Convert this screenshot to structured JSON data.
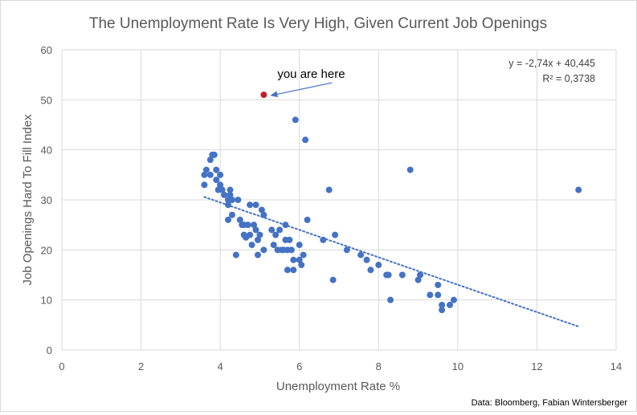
{
  "chart_data": {
    "type": "scatter",
    "title": "The Unemployment Rate Is Very High, Given Current Job Openings",
    "xlabel": "Unemployment Rate %",
    "ylabel": "Job Openings Hard To Fill Index",
    "xlim": [
      0,
      14
    ],
    "ylim": [
      0,
      60
    ],
    "xticks": [
      0,
      2,
      4,
      6,
      8,
      10,
      12,
      14
    ],
    "yticks": [
      0,
      10,
      20,
      30,
      40,
      50,
      60
    ],
    "grid": true,
    "source": "Data: Bloomberg, Fabian Wintersberger",
    "trendline": {
      "type": "linear",
      "style": "dotted",
      "slope": -2.74,
      "intercept": 40.445,
      "x_range": [
        3.6,
        13.05
      ],
      "equation_label": "y = -2,74x + 40,445",
      "r2_label": "R² = 0,3738"
    },
    "highlight": {
      "x": 5.1,
      "y": 51,
      "color": "#c0202a",
      "label": "you are here"
    },
    "series": [
      {
        "name": "Observations",
        "color": "#4472c4",
        "points": [
          [
            3.6,
            35
          ],
          [
            3.6,
            33
          ],
          [
            3.65,
            36
          ],
          [
            3.75,
            38
          ],
          [
            3.8,
            39
          ],
          [
            3.85,
            39
          ],
          [
            3.75,
            35
          ],
          [
            3.9,
            36
          ],
          [
            3.9,
            34
          ],
          [
            3.95,
            32
          ],
          [
            4.0,
            35
          ],
          [
            4.0,
            33
          ],
          [
            4.05,
            32
          ],
          [
            4.1,
            31
          ],
          [
            4.2,
            30
          ],
          [
            4.25,
            31
          ],
          [
            4.25,
            32
          ],
          [
            4.3,
            30
          ],
          [
            4.2,
            29
          ],
          [
            4.3,
            27
          ],
          [
            4.45,
            30
          ],
          [
            4.5,
            26
          ],
          [
            4.55,
            25
          ],
          [
            4.6,
            25
          ],
          [
            4.7,
            25
          ],
          [
            4.75,
            29
          ],
          [
            4.6,
            23
          ],
          [
            4.65,
            22.5
          ],
          [
            4.75,
            23
          ],
          [
            4.8,
            21
          ],
          [
            4.85,
            25
          ],
          [
            4.9,
            24
          ],
          [
            4.9,
            29
          ],
          [
            4.95,
            22
          ],
          [
            5.0,
            23
          ],
          [
            5.05,
            28
          ],
          [
            5.1,
            27
          ],
          [
            5.1,
            20
          ],
          [
            4.2,
            26
          ],
          [
            4.95,
            19
          ],
          [
            4.4,
            19
          ],
          [
            5.3,
            24
          ],
          [
            5.35,
            21
          ],
          [
            5.4,
            23
          ],
          [
            5.45,
            20
          ],
          [
            5.5,
            24
          ],
          [
            5.55,
            20
          ],
          [
            5.6,
            20
          ],
          [
            5.65,
            25
          ],
          [
            5.7,
            20
          ],
          [
            5.65,
            22
          ],
          [
            5.7,
            16
          ],
          [
            5.75,
            22
          ],
          [
            5.8,
            20
          ],
          [
            5.85,
            16
          ],
          [
            5.85,
            18
          ],
          [
            5.9,
            46
          ],
          [
            6.0,
            18
          ],
          [
            6.0,
            21
          ],
          [
            6.05,
            17
          ],
          [
            6.1,
            19
          ],
          [
            6.15,
            42
          ],
          [
            6.2,
            26
          ],
          [
            6.6,
            22
          ],
          [
            6.75,
            32
          ],
          [
            6.85,
            14
          ],
          [
            6.9,
            23
          ],
          [
            7.2,
            20
          ],
          [
            7.55,
            19
          ],
          [
            7.7,
            18
          ],
          [
            7.8,
            16
          ],
          [
            8.0,
            17
          ],
          [
            8.2,
            15
          ],
          [
            8.25,
            15
          ],
          [
            8.3,
            10
          ],
          [
            8.6,
            15
          ],
          [
            8.8,
            36
          ],
          [
            9.0,
            14
          ],
          [
            9.05,
            15
          ],
          [
            9.3,
            11
          ],
          [
            9.5,
            11
          ],
          [
            9.5,
            13
          ],
          [
            9.6,
            9
          ],
          [
            9.6,
            8
          ],
          [
            9.8,
            9
          ],
          [
            9.9,
            10
          ],
          [
            13.05,
            32
          ]
        ]
      }
    ]
  }
}
